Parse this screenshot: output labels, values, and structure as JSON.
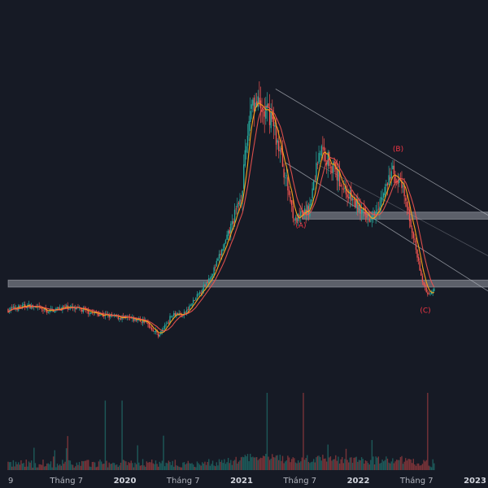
{
  "chart_data": {
    "type": "candlestick",
    "grid": false,
    "colors": {
      "background": "#161a25",
      "up": "#26a69a",
      "down": "#ef5350",
      "ma_fast": "#f7a21b",
      "ma_slow": "#ef5350",
      "channel": "#b2b5be",
      "zone": "#b2b5be",
      "wave_label": "#f23645",
      "axis_text": "#b2b5be"
    },
    "x_axis": {
      "ticks": [
        {
          "label": "9",
          "bold": false,
          "t": 0
        },
        {
          "label": "Tháng 7",
          "bold": false,
          "t": 6
        },
        {
          "label": "2020",
          "bold": true,
          "t": 12
        },
        {
          "label": "Tháng 7",
          "bold": false,
          "t": 18
        },
        {
          "label": "2021",
          "bold": true,
          "t": 24
        },
        {
          "label": "Tháng 7",
          "bold": false,
          "t": 30
        },
        {
          "label": "2022",
          "bold": true,
          "t": 36
        },
        {
          "label": "Tháng 7",
          "bold": false,
          "t": 42
        },
        {
          "label": "2023",
          "bold": true,
          "t": 48
        }
      ]
    },
    "y_range": [
      0,
      100
    ],
    "price_path": [
      [
        0,
        17
      ],
      [
        2,
        18.5
      ],
      [
        4,
        16.5
      ],
      [
        6,
        18
      ],
      [
        8,
        16.5
      ],
      [
        10,
        15
      ],
      [
        12,
        14
      ],
      [
        14,
        13
      ],
      [
        15.5,
        8
      ],
      [
        17,
        16
      ],
      [
        18,
        15
      ],
      [
        19.5,
        22
      ],
      [
        21,
        30
      ],
      [
        22.5,
        42
      ],
      [
        24,
        58
      ],
      [
        25,
        92
      ],
      [
        26,
        87
      ],
      [
        27,
        86
      ],
      [
        28,
        72
      ],
      [
        29.5,
        48
      ],
      [
        31,
        53
      ],
      [
        32,
        74
      ],
      [
        33,
        70
      ],
      [
        34.5,
        60
      ],
      [
        36,
        53
      ],
      [
        37,
        49
      ],
      [
        38.5,
        57
      ],
      [
        39.5,
        66
      ],
      [
        40.5,
        60
      ],
      [
        41.5,
        46
      ],
      [
        42.5,
        28
      ],
      [
        43.2,
        22
      ],
      [
        43.8,
        25
      ]
    ],
    "annotations": {
      "wave_labels": [
        {
          "text": "(A)",
          "t": 30.1,
          "v": 46
        },
        {
          "text": "(B)",
          "t": 40.1,
          "v": 73
        },
        {
          "text": "(C)",
          "t": 42.9,
          "v": 16
        }
      ],
      "channel_lines": [
        {
          "from": [
            27.5,
            95
          ],
          "to": [
            51,
            47
          ]
        },
        {
          "from": [
            28.5,
            69
          ],
          "to": [
            51,
            20
          ]
        },
        {
          "from": [
            32,
            68
          ],
          "to": [
            51,
            33
          ]
        }
      ],
      "zones": [
        {
          "t0": 30.3,
          "t1": 51,
          "v0": 49,
          "v1": 51.5
        },
        {
          "t0": 0,
          "t1": 51,
          "v0": 25,
          "v1": 27.5
        }
      ]
    }
  }
}
